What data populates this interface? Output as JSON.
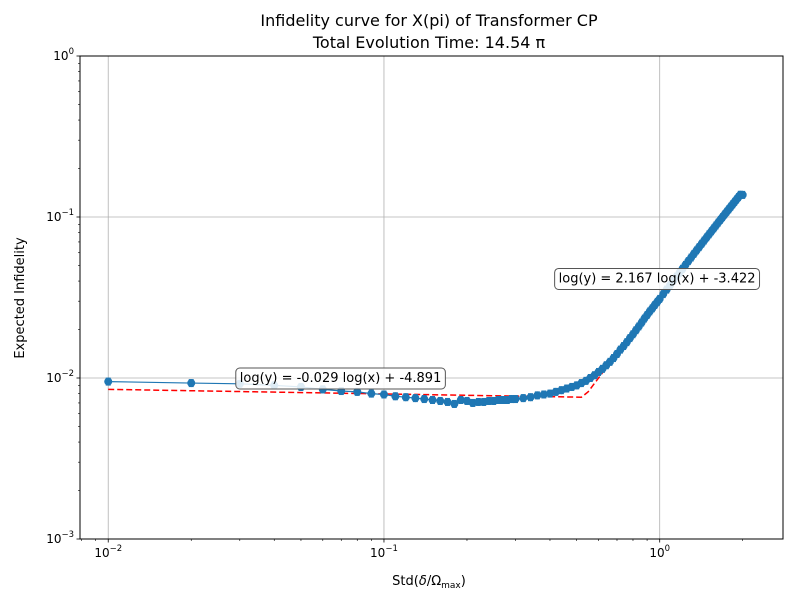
{
  "chart_data": {
    "type": "scatter",
    "title_line1": "Infidelity curve for X(pi) of Transformer CP",
    "title_line2": "Total Evolution Time: 14.54 π",
    "xlabel_prefix": "Std(",
    "xlabel_delta": "δ",
    "xlabel_sep": "/",
    "xlabel_omega": "Ω",
    "xlabel_sub": "max",
    "xlabel_suffix": ")",
    "ylabel": "Expected Infidelity",
    "x_scale": "log",
    "y_scale": "log",
    "xlim": [
      0.0079,
      2.8
    ],
    "ylim": [
      0.001,
      1
    ],
    "grid": true,
    "x_ticks": [
      {
        "value": 0.01,
        "base": "10",
        "exp": "−2"
      },
      {
        "value": 0.1,
        "base": "10",
        "exp": "−1"
      },
      {
        "value": 1,
        "base": "10",
        "exp": "0"
      }
    ],
    "y_ticks": [
      {
        "value": 0.001,
        "base": "10",
        "exp": "−3"
      },
      {
        "value": 0.01,
        "base": "10",
        "exp": "−2"
      },
      {
        "value": 0.1,
        "base": "10",
        "exp": "−1"
      },
      {
        "value": 1,
        "base": "10",
        "exp": "0"
      }
    ],
    "series": [
      {
        "kind": "data",
        "color": "#1f77b4",
        "x": [
          0.01,
          0.02,
          0.03,
          0.04,
          0.05,
          0.06,
          0.07,
          0.08,
          0.09,
          0.1,
          0.11,
          0.12,
          0.13,
          0.14,
          0.15,
          0.16,
          0.17,
          0.18,
          0.19,
          0.2,
          0.21,
          0.22,
          0.23,
          0.24,
          0.25,
          0.26,
          0.27,
          0.28,
          0.29,
          0.3,
          0.32,
          0.34,
          0.36,
          0.38,
          0.4,
          0.42,
          0.44,
          0.46,
          0.48,
          0.5,
          0.52,
          0.54,
          0.56,
          0.58,
          0.6,
          0.62,
          0.64,
          0.66,
          0.68,
          0.7,
          0.72,
          0.74,
          0.76,
          0.78,
          0.8,
          0.82,
          0.84,
          0.86,
          0.88,
          0.9,
          0.92,
          0.94,
          0.96,
          0.98,
          1.0,
          1.03,
          1.06,
          1.09,
          1.12,
          1.15,
          1.18,
          1.21,
          1.24,
          1.27,
          1.3,
          1.33,
          1.36,
          1.39,
          1.42,
          1.45,
          1.48,
          1.51,
          1.54,
          1.57,
          1.6,
          1.63,
          1.66,
          1.69,
          1.72,
          1.75,
          1.78,
          1.81,
          1.84,
          1.87,
          1.9,
          1.93,
          1.96,
          2.0
        ],
        "y": [
          0.0095,
          0.0093,
          0.0092,
          0.009,
          0.0088,
          0.0085,
          0.0083,
          0.0082,
          0.008,
          0.0079,
          0.0077,
          0.0076,
          0.0075,
          0.0074,
          0.0073,
          0.0072,
          0.0071,
          0.0069,
          0.0073,
          0.0072,
          0.007,
          0.0071,
          0.0071,
          0.0072,
          0.0072,
          0.0073,
          0.0073,
          0.0073,
          0.0074,
          0.0074,
          0.0075,
          0.0076,
          0.0078,
          0.0079,
          0.008,
          0.0082,
          0.0084,
          0.0086,
          0.0088,
          0.009,
          0.0093,
          0.0096,
          0.01,
          0.0104,
          0.0109,
          0.0114,
          0.012,
          0.0126,
          0.0133,
          0.0141,
          0.015,
          0.0158,
          0.0167,
          0.0177,
          0.0187,
          0.0198,
          0.0209,
          0.0221,
          0.0234,
          0.0246,
          0.0259,
          0.0271,
          0.0284,
          0.0297,
          0.031,
          0.0332,
          0.0354,
          0.0377,
          0.0401,
          0.0426,
          0.0451,
          0.0477,
          0.0504,
          0.0532,
          0.056,
          0.059,
          0.062,
          0.065,
          0.0682,
          0.0714,
          0.0747,
          0.0781,
          0.0815,
          0.085,
          0.0886,
          0.0923,
          0.096,
          0.0998,
          0.1037,
          0.1077,
          0.1117,
          0.1158,
          0.12,
          0.1242,
          0.1285,
          0.1329,
          0.1374,
          0.1372
        ]
      },
      {
        "kind": "fit",
        "color": "#ff0000",
        "style": "dashed",
        "x": [
          0.01,
          0.52,
          0.55,
          1.0,
          2.0
        ],
        "y": [
          0.0085,
          0.0076,
          0.0082,
          0.0321,
          0.1436
        ]
      }
    ],
    "annotations": [
      {
        "text": "log(y) = -0.029 log(x) + -4.891",
        "anchor_x": 0.03,
        "anchor_y": 0.01
      },
      {
        "text": "log(y) = 2.167 log(x) + -3.422",
        "anchor_x": 0.43,
        "anchor_y": 0.0415
      }
    ]
  }
}
